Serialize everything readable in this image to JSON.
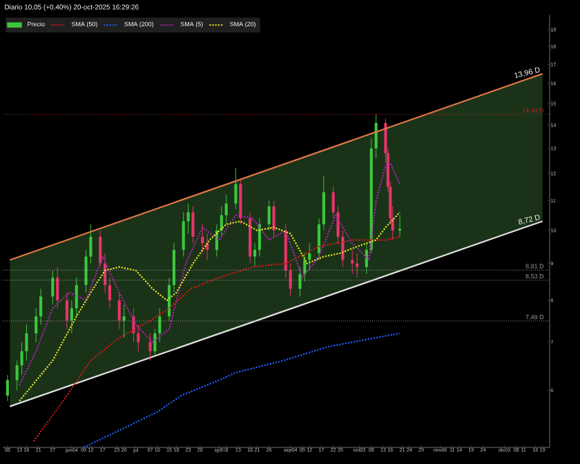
{
  "chart_data": {
    "type": "candlestick",
    "title": "Diario 10,05 (+0,40%) 20-oct-2025 16:29:26",
    "log": "y",
    "legend": "top left",
    "grid": false,
    "xlim": [
      "2025-05-06",
      "2025-12-22"
    ],
    "ylim": [
      5.0,
      19.9
    ],
    "yticks": [
      6,
      7,
      8,
      9,
      10,
      11,
      12,
      13,
      14,
      15,
      16,
      17,
      18,
      19
    ],
    "xticks": [
      {
        "value": "2025-05-08",
        "label": "08"
      },
      {
        "value": "2025-05-13",
        "label": "13"
      },
      {
        "value": "2025-05-16",
        "label": "16"
      },
      {
        "value": "2025-05-21",
        "label": "21"
      },
      {
        "value": "2025-05-27",
        "label": "27"
      },
      {
        "value": "2025-06-04",
        "label": "jun04"
      },
      {
        "value": "2025-06-09",
        "label": "09"
      },
      {
        "value": "2025-06-12",
        "label": "12"
      },
      {
        "value": "2025-06-17",
        "label": "17"
      },
      {
        "value": "2025-06-23",
        "label": "23"
      },
      {
        "value": "2025-06-26",
        "label": "26"
      },
      {
        "value": "2025-07-01",
        "label": "jul"
      },
      {
        "value": "2025-07-07",
        "label": "07"
      },
      {
        "value": "2025-07-10",
        "label": "10"
      },
      {
        "value": "2025-07-15",
        "label": "15"
      },
      {
        "value": "2025-07-18",
        "label": "18"
      },
      {
        "value": "2025-07-23",
        "label": "23"
      },
      {
        "value": "2025-07-28",
        "label": "28"
      },
      {
        "value": "2025-08-05",
        "label": "ago05"
      },
      {
        "value": "2025-08-08",
        "label": "08"
      },
      {
        "value": "2025-08-13",
        "label": "13"
      },
      {
        "value": "2025-08-18",
        "label": "18"
      },
      {
        "value": "2025-08-21",
        "label": "21"
      },
      {
        "value": "2025-08-26",
        "label": "26"
      },
      {
        "value": "2025-09-04",
        "label": "sep04"
      },
      {
        "value": "2025-09-09",
        "label": "09"
      },
      {
        "value": "2025-09-12",
        "label": "12"
      },
      {
        "value": "2025-09-17",
        "label": "17"
      },
      {
        "value": "2025-09-22",
        "label": "22"
      },
      {
        "value": "2025-09-25",
        "label": "25"
      },
      {
        "value": "2025-10-03",
        "label": "oct03"
      },
      {
        "value": "2025-10-08",
        "label": "08"
      },
      {
        "value": "2025-10-13",
        "label": "13"
      },
      {
        "value": "2025-10-16",
        "label": "16"
      },
      {
        "value": "2025-10-21",
        "label": "21"
      },
      {
        "value": "2025-10-24",
        "label": "24"
      },
      {
        "value": "2025-10-29",
        "label": "29"
      },
      {
        "value": "2025-11-06",
        "label": "nov06"
      },
      {
        "value": "2025-11-11",
        "label": "11"
      },
      {
        "value": "2025-11-14",
        "label": "14"
      },
      {
        "value": "2025-11-19",
        "label": "19"
      },
      {
        "value": "2025-11-24",
        "label": "24"
      },
      {
        "value": "2025-12-03",
        "label": "dic03"
      },
      {
        "value": "2025-12-08",
        "label": "08"
      },
      {
        "value": "2025-12-11",
        "label": "11"
      },
      {
        "value": "2025-12-16",
        "label": "16"
      },
      {
        "value": "2025-12-19",
        "label": "19"
      }
    ],
    "series": [
      {
        "name": "Precio",
        "type": "candlestick",
        "x": [
          "2025-05-08",
          "2025-05-12",
          "2025-05-14",
          "2025-05-16",
          "2025-05-20",
          "2025-05-22",
          "2025-05-27",
          "2025-05-29",
          "2025-06-02",
          "2025-06-04",
          "2025-06-06",
          "2025-06-10",
          "2025-06-12",
          "2025-06-16",
          "2025-06-18",
          "2025-06-20",
          "2025-06-24",
          "2025-06-26",
          "2025-06-30",
          "2025-07-02",
          "2025-07-07",
          "2025-07-09",
          "2025-07-11",
          "2025-07-15",
          "2025-07-17",
          "2025-07-21",
          "2025-07-23",
          "2025-07-25",
          "2025-07-29",
          "2025-07-31",
          "2025-08-04",
          "2025-08-06",
          "2025-08-08",
          "2025-08-12",
          "2025-08-14",
          "2025-08-18",
          "2025-08-20",
          "2025-08-22",
          "2025-08-26",
          "2025-08-28",
          "2025-09-02",
          "2025-09-04",
          "2025-09-08",
          "2025-09-10",
          "2025-09-12",
          "2025-09-16",
          "2025-09-18",
          "2025-09-22",
          "2025-09-24",
          "2025-09-26",
          "2025-09-30",
          "2025-10-02",
          "2025-10-06",
          "2025-10-08",
          "2025-10-10",
          "2025-10-14",
          "2025-10-15",
          "2025-10-16",
          "2025-10-17",
          "2025-10-20"
        ],
        "ohlc": [
          [
            5.9,
            6.3,
            5.8,
            6.2
          ],
          [
            6.2,
            6.6,
            6.0,
            6.5
          ],
          [
            6.5,
            7.0,
            6.3,
            6.8
          ],
          [
            6.8,
            7.4,
            6.6,
            7.2
          ],
          [
            7.2,
            7.8,
            7.0,
            7.6
          ],
          [
            7.6,
            8.3,
            7.4,
            8.1
          ],
          [
            8.1,
            8.8,
            7.9,
            8.6
          ],
          [
            8.6,
            8.9,
            7.8,
            8.0
          ],
          [
            8.0,
            8.2,
            7.3,
            7.5
          ],
          [
            7.5,
            8.0,
            7.2,
            7.8
          ],
          [
            7.8,
            8.6,
            7.6,
            8.4
          ],
          [
            8.4,
            9.4,
            8.2,
            9.2
          ],
          [
            9.2,
            10.2,
            9.0,
            9.8
          ],
          [
            9.8,
            10.0,
            8.9,
            9.0
          ],
          [
            9.0,
            9.3,
            8.2,
            8.4
          ],
          [
            8.4,
            8.6,
            7.8,
            8.0
          ],
          [
            8.0,
            8.2,
            7.3,
            7.5
          ],
          [
            7.5,
            7.9,
            7.1,
            7.6
          ],
          [
            7.6,
            7.8,
            7.0,
            7.2
          ],
          [
            7.2,
            7.4,
            6.8,
            7.0
          ],
          [
            7.0,
            7.2,
            6.6,
            6.8
          ],
          [
            6.8,
            7.3,
            6.7,
            7.2
          ],
          [
            7.2,
            7.8,
            7.0,
            7.6
          ],
          [
            7.6,
            8.6,
            7.5,
            8.4
          ],
          [
            8.4,
            9.6,
            8.2,
            9.4
          ],
          [
            9.4,
            10.6,
            9.2,
            10.3
          ],
          [
            10.3,
            10.9,
            9.9,
            10.6
          ],
          [
            10.6,
            10.8,
            9.6,
            9.8
          ],
          [
            9.8,
            10.2,
            9.3,
            9.6
          ],
          [
            9.6,
            9.9,
            9.1,
            9.4
          ],
          [
            9.4,
            10.2,
            9.2,
            10.0
          ],
          [
            10.0,
            10.8,
            9.8,
            10.5
          ],
          [
            10.5,
            11.2,
            10.2,
            10.9
          ],
          [
            10.9,
            12.2,
            10.7,
            11.6
          ],
          [
            11.6,
            11.8,
            10.2,
            10.4
          ],
          [
            10.4,
            10.6,
            9.0,
            9.2
          ],
          [
            9.2,
            9.6,
            8.9,
            9.4
          ],
          [
            9.4,
            10.4,
            9.2,
            10.2
          ],
          [
            10.2,
            11.0,
            10.0,
            10.8
          ],
          [
            10.8,
            11.0,
            9.8,
            10.0
          ],
          [
            10.0,
            10.2,
            8.6,
            8.8
          ],
          [
            8.8,
            9.0,
            8.1,
            8.3
          ],
          [
            8.3,
            8.9,
            8.1,
            8.7
          ],
          [
            8.7,
            9.3,
            8.5,
            9.1
          ],
          [
            9.1,
            9.6,
            8.8,
            9.3
          ],
          [
            9.3,
            10.4,
            9.1,
            10.2
          ],
          [
            10.2,
            11.9,
            10.0,
            11.3
          ],
          [
            11.3,
            11.5,
            10.4,
            10.6
          ],
          [
            10.6,
            10.8,
            9.6,
            9.8
          ],
          [
            9.8,
            10.0,
            8.9,
            9.1
          ],
          [
            9.1,
            9.4,
            8.7,
            9.0
          ],
          [
            9.0,
            9.3,
            8.6,
            8.9
          ],
          [
            8.9,
            9.6,
            8.7,
            9.4
          ],
          [
            9.4,
            13.4,
            9.3,
            13.0
          ],
          [
            13.0,
            14.49,
            12.6,
            14.1
          ],
          [
            14.1,
            14.3,
            12.4,
            12.8
          ],
          [
            12.8,
            13.0,
            11.3,
            11.5
          ],
          [
            11.5,
            11.7,
            10.2,
            10.4
          ],
          [
            10.4,
            10.8,
            9.7,
            10.0
          ],
          [
            10.0,
            10.5,
            9.8,
            10.05
          ]
        ],
        "colors": [
          "#3cc83c",
          "#3cc83c",
          "#3cc83c",
          "#3cc83c",
          "#3cc83c",
          "#3cc83c",
          "#3cc83c",
          "#e8336b",
          "#e8336b",
          "#3cc83c",
          "#3cc83c",
          "#3cc83c",
          "#3cc83c",
          "#e8336b",
          "#e8336b",
          "#e8336b",
          "#e8336b",
          "#3cc83c",
          "#e8336b",
          "#e8336b",
          "#e8336b",
          "#3cc83c",
          "#3cc83c",
          "#3cc83c",
          "#3cc83c",
          "#3cc83c",
          "#3cc83c",
          "#e8336b",
          "#e8336b",
          "#e8336b",
          "#3cc83c",
          "#3cc83c",
          "#3cc83c",
          "#3cc83c",
          "#e8336b",
          "#e8336b",
          "#3cc83c",
          "#3cc83c",
          "#3cc83c",
          "#e8336b",
          "#e8336b",
          "#e8336b",
          "#3cc83c",
          "#3cc83c",
          "#3cc83c",
          "#3cc83c",
          "#3cc83c",
          "#e8336b",
          "#e8336b",
          "#e8336b",
          "#e8336b",
          "#e8336b",
          "#3cc83c",
          "#3cc83c",
          "#3cc83c",
          "#e8336b",
          "#e8336b",
          "#e8336b",
          "#e8336b",
          "#3cc83c"
        ]
      },
      {
        "name": "SMA (50)",
        "type": "line",
        "line_style": "dotted",
        "color": "#d01818",
        "x": [
          "2025-05-19",
          "2025-06-02",
          "2025-06-12",
          "2025-06-24",
          "2025-07-07",
          "2025-07-15",
          "2025-07-24",
          "2025-08-05",
          "2025-08-19",
          "2025-09-02",
          "2025-09-16",
          "2025-09-30",
          "2025-10-14",
          "2025-10-20"
        ],
        "values": [
          5.1,
          5.9,
          6.6,
          7.1,
          7.5,
          7.8,
          8.3,
          8.6,
          8.9,
          9.0,
          9.5,
          9.7,
          9.7,
          9.8
        ]
      },
      {
        "name": "SMA (200)",
        "type": "line",
        "line_style": "dotted",
        "color": "#1f5fff",
        "x": [
          "2025-06-09",
          "2025-06-25",
          "2025-07-10",
          "2025-07-20",
          "2025-08-05",
          "2025-08-12",
          "2025-09-01",
          "2025-09-20",
          "2025-10-05",
          "2025-10-20"
        ],
        "values": [
          5.0,
          5.3,
          5.6,
          5.9,
          6.2,
          6.35,
          6.6,
          6.9,
          7.05,
          7.2
        ]
      },
      {
        "name": "SMA (5)",
        "type": "line",
        "line_style": "dotted",
        "color": "#b020b0",
        "x": [
          "2025-05-13",
          "2025-05-20",
          "2025-05-27",
          "2025-06-03",
          "2025-06-10",
          "2025-06-17",
          "2025-06-24",
          "2025-07-01",
          "2025-07-08",
          "2025-07-15",
          "2025-07-22",
          "2025-07-29",
          "2025-08-05",
          "2025-08-12",
          "2025-08-19",
          "2025-08-26",
          "2025-09-02",
          "2025-09-09",
          "2025-09-16",
          "2025-09-23",
          "2025-09-30",
          "2025-10-07",
          "2025-10-10",
          "2025-10-14",
          "2025-10-16",
          "2025-10-20"
        ],
        "values": [
          6.1,
          6.8,
          7.8,
          8.2,
          8.0,
          9.2,
          8.2,
          7.4,
          7.0,
          7.3,
          9.0,
          10.1,
          9.7,
          10.5,
          10.4,
          9.7,
          10.0,
          8.6,
          9.2,
          10.5,
          9.6,
          9.1,
          11.0,
          12.3,
          12.4,
          11.6
        ]
      },
      {
        "name": "SMA (20)",
        "type": "line",
        "line_style": "dotted",
        "color": "#e8e820",
        "x": [
          "2025-05-13",
          "2025-05-27",
          "2025-06-06",
          "2025-06-13",
          "2025-06-18",
          "2025-06-24",
          "2025-07-01",
          "2025-07-08",
          "2025-07-14",
          "2025-07-18",
          "2025-07-25",
          "2025-08-01",
          "2025-08-08",
          "2025-08-14",
          "2025-08-21",
          "2025-08-28",
          "2025-09-04",
          "2025-09-11",
          "2025-09-18",
          "2025-09-25",
          "2025-10-02",
          "2025-10-10",
          "2025-10-14",
          "2025-10-20"
        ],
        "values": [
          5.8,
          6.6,
          7.6,
          8.3,
          8.8,
          8.9,
          8.8,
          8.3,
          8.0,
          8.2,
          9.0,
          9.7,
          10.2,
          10.3,
          10.0,
          10.1,
          9.9,
          9.0,
          9.2,
          9.3,
          9.5,
          9.7,
          10.1,
          10.6
        ]
      },
      {
        "type": "line",
        "line_style": "solid",
        "color": "#e07848",
        "x": [
          "2025-05-09",
          "2025-12-19"
        ],
        "values": [
          9.1,
          16.5
        ]
      },
      {
        "type": "line",
        "line_style": "solid",
        "color": "#e0e0e0",
        "x": [
          "2025-05-09",
          "2025-12-19"
        ],
        "values": [
          5.7,
          10.3
        ],
        "lower": [
          5.7,
          10.3
        ],
        "upper": [
          9.1,
          16.5
        ]
      }
    ],
    "ref_lines": [
      {
        "axis": "y",
        "value": 14.49,
        "label": "14,49 D",
        "color": "#c02020",
        "line_style": "dotted"
      },
      {
        "axis": "y",
        "value": 8.81,
        "label": "8,81 D",
        "color": "#a0a0a0",
        "line_style": "dotted"
      },
      {
        "axis": "y",
        "value": 8.53,
        "label": "8,53 D",
        "color": "#a0a0a0",
        "line_style": "dotted"
      },
      {
        "axis": "y",
        "value": 7.49,
        "label": "7,49 D",
        "color": "#a0a0a0",
        "line_style": "dotted"
      }
    ],
    "annotations": [
      {
        "text": "13,96 D",
        "x": "2025-12-19",
        "y": 16.5
      },
      {
        "text": "8,72 D",
        "x": "2025-12-19",
        "y": 10.3
      }
    ]
  }
}
